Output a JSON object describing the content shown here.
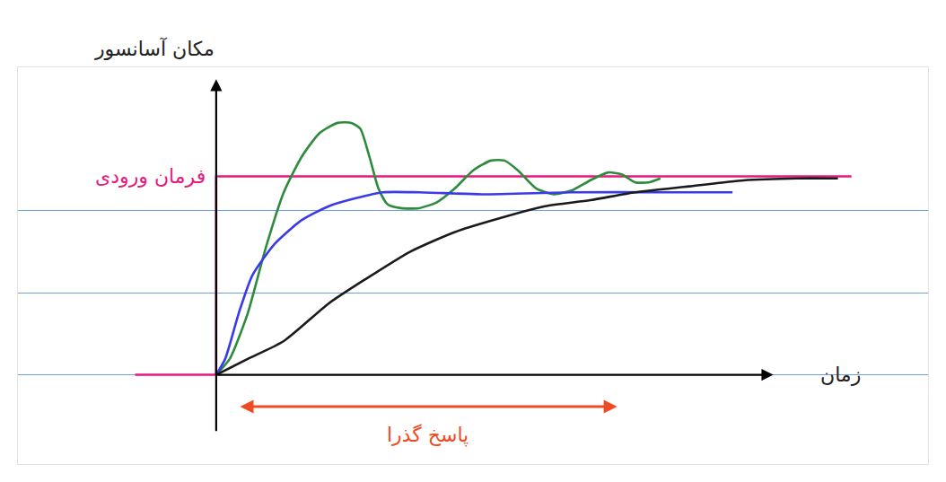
{
  "chart_data": {
    "type": "line",
    "x_label": "زمان",
    "y_label": "مکان آسانسور",
    "xlim": [
      -2.2,
      7.9
    ],
    "ylim": [
      -0.45,
      1.55
    ],
    "xticks": [],
    "yticks": [
      0,
      0.41,
      0.83
    ],
    "grid": true,
    "tick_labels": false,
    "series": [
      {
        "name": "فرمان ورودی",
        "color": "#e6197e",
        "x": [
          -0.9,
          0,
          0,
          7.05
        ],
        "values": [
          0,
          0,
          1,
          1
        ]
      },
      {
        "color": "#2e8b3e",
        "x": [
          0,
          0.15,
          0.35,
          0.55,
          0.75,
          0.95,
          1.15,
          1.35,
          1.5,
          1.6,
          1.7,
          1.8,
          1.9,
          2.05,
          2.25,
          2.45,
          2.65,
          2.85,
          3.05,
          3.2,
          3.35,
          3.55,
          3.75,
          3.95,
          4.15,
          4.35,
          4.5,
          4.65,
          4.8,
          4.93
        ],
        "values": [
          0,
          0.08,
          0.31,
          0.64,
          0.92,
          1.1,
          1.22,
          1.27,
          1.27,
          1.24,
          1.1,
          0.94,
          0.86,
          0.84,
          0.84,
          0.87,
          0.94,
          1.03,
          1.08,
          1.08,
          1.03,
          0.94,
          0.91,
          0.93,
          0.98,
          1.02,
          1.01,
          0.97,
          0.97,
          0.99
        ]
      },
      {
        "color": "#3a3ae8",
        "x": [
          0,
          0.1,
          0.25,
          0.4,
          0.65,
          0.95,
          1.25,
          1.55,
          1.85,
          2.25,
          2.95,
          3.95,
          4.95,
          5.73
        ],
        "values": [
          0,
          0.08,
          0.31,
          0.5,
          0.66,
          0.78,
          0.85,
          0.89,
          0.92,
          0.92,
          0.91,
          0.92,
          0.92,
          0.92
        ]
      },
      {
        "color": "#1a1a1a",
        "x": [
          0,
          0.35,
          0.75,
          1.25,
          1.65,
          2.15,
          2.65,
          3.15,
          3.65,
          4.15,
          4.65,
          5.25,
          5.85,
          6.45,
          6.9
        ],
        "values": [
          0,
          0.08,
          0.17,
          0.36,
          0.48,
          0.62,
          0.72,
          0.79,
          0.85,
          0.88,
          0.92,
          0.95,
          0.98,
          0.99,
          0.99
        ]
      }
    ],
    "annotations": [
      {
        "text": "پاسخ گذرا",
        "x": [
          0.25,
          4.45
        ],
        "y": -0.16,
        "color": "#f04a23"
      }
    ]
  }
}
